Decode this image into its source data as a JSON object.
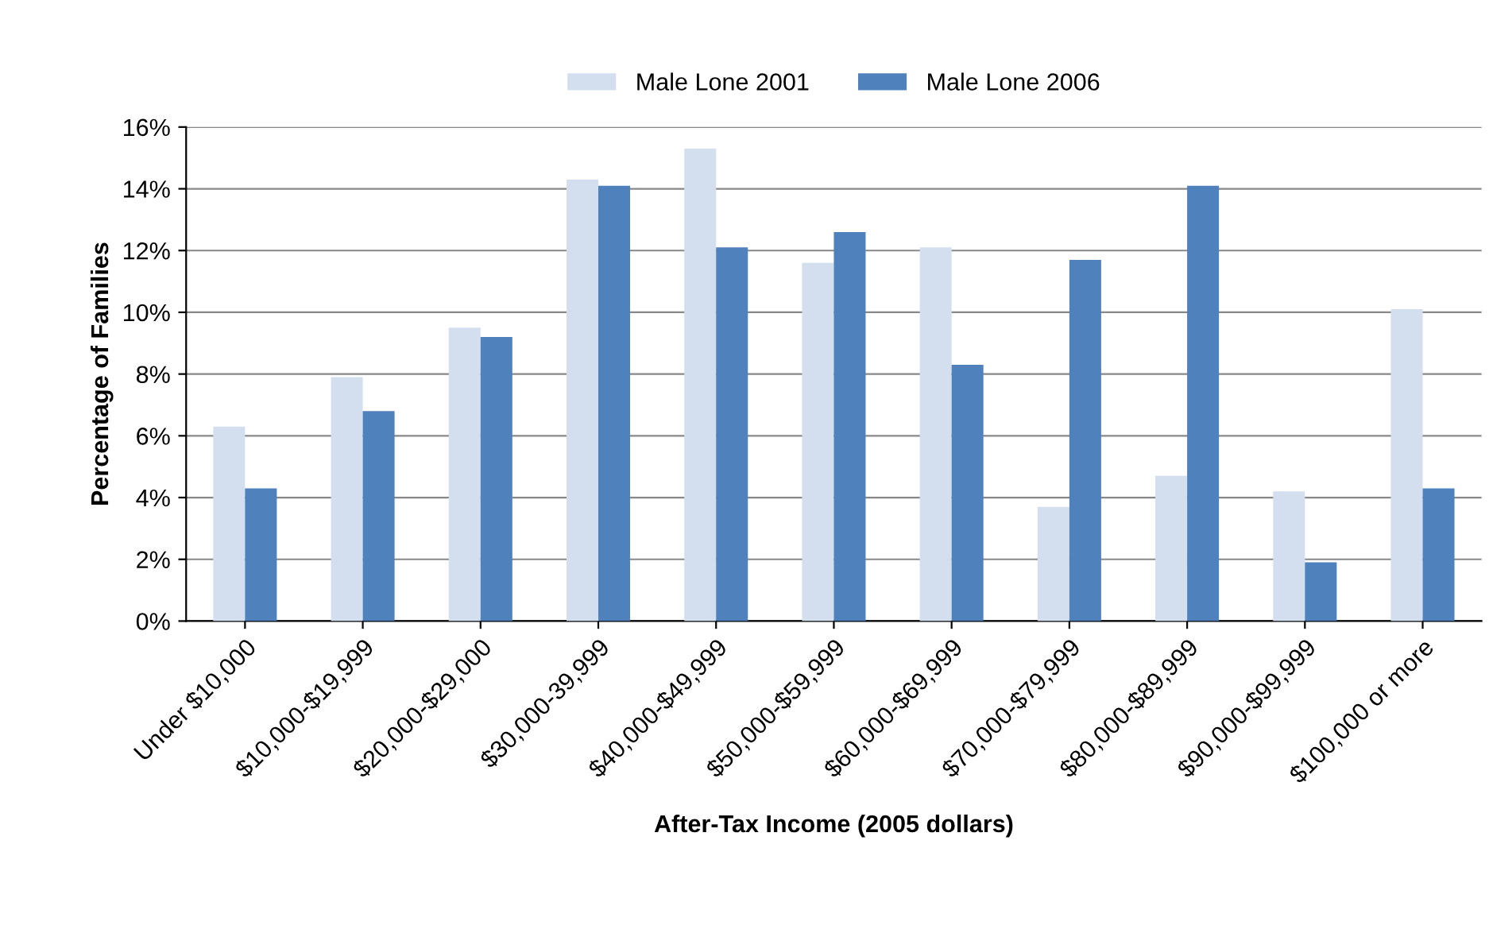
{
  "chart_data": {
    "type": "bar",
    "xlabel": "After-Tax Income (2005 dollars)",
    "ylabel": "Percentage of Families",
    "categories": [
      "Under $10,000",
      "$10,000-$19,999",
      "$20,000-$29,000",
      "$30,000-39,999",
      "$40,000-$49,999",
      "$50,000-$59,999",
      "$60,000-$69,999",
      "$70,000-$79,999",
      "$80,000-$89,999",
      "$90,000-$99,999",
      "$100,000 or more"
    ],
    "series": [
      {
        "name": "Male Lone 2001",
        "color": "#d3dfee",
        "values": [
          6.3,
          7.9,
          9.5,
          14.3,
          15.3,
          11.6,
          12.1,
          3.7,
          4.7,
          4.2,
          10.1
        ]
      },
      {
        "name": "Male Lone 2006",
        "color": "#4f81bd",
        "values": [
          4.3,
          6.8,
          9.2,
          14.1,
          12.1,
          12.6,
          8.3,
          11.7,
          14.1,
          1.9,
          4.3
        ]
      }
    ],
    "ylim": [
      0,
      16
    ],
    "yticks": [
      {
        "value": 0,
        "label": "0%"
      },
      {
        "value": 2,
        "label": "2%"
      },
      {
        "value": 4,
        "label": "4%"
      },
      {
        "value": 6,
        "label": "6%"
      },
      {
        "value": 8,
        "label": "8%"
      },
      {
        "value": 10,
        "label": "10%"
      },
      {
        "value": 12,
        "label": "12%"
      },
      {
        "value": 14,
        "label": "14%"
      },
      {
        "value": 16,
        "label": "16%"
      }
    ],
    "grid": "y",
    "legend": "top"
  }
}
